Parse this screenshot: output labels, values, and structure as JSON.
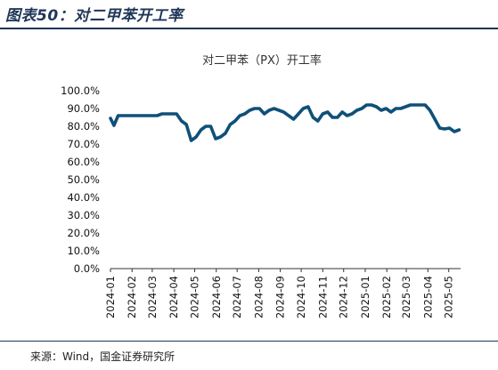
{
  "header": {
    "figure_title": "图表50：对二甲苯开工率"
  },
  "footer": {
    "source": "来源：Wind，国金证券研究所"
  },
  "colors": {
    "line": "#0f5078",
    "title_rule": "#1f3657"
  },
  "chart_data": {
    "type": "line",
    "title": "对二甲苯（PX）开工率",
    "xlabel": "",
    "ylabel": "",
    "ylim": [
      0,
      100
    ],
    "ytick_labels": [
      "0.0%",
      "10.0%",
      "20.0%",
      "30.0%",
      "40.0%",
      "50.0%",
      "60.0%",
      "70.0%",
      "80.0%",
      "90.0%",
      "100.0%"
    ],
    "xtick_labels": [
      "2024-01",
      "2024-02",
      "2024-03",
      "2024-04",
      "2024-05",
      "2024-06",
      "2024-07",
      "2024-08",
      "2024-09",
      "2024-10",
      "2024-11",
      "2024-12",
      "2025-01",
      "2025-02",
      "2025-03",
      "2025-04",
      "2025-05"
    ],
    "grid": false,
    "legend": "none",
    "series": [
      {
        "name": "",
        "x": [
          "2024-01-01",
          "2024-01-06",
          "2024-01-12",
          "2024-01-19",
          "2024-01-26",
          "2024-02-02",
          "2024-02-09",
          "2024-02-16",
          "2024-02-23",
          "2024-03-01",
          "2024-03-08",
          "2024-03-15",
          "2024-03-22",
          "2024-03-29",
          "2024-04-05",
          "2024-04-12",
          "2024-04-19",
          "2024-04-26",
          "2024-05-03",
          "2024-05-10",
          "2024-05-17",
          "2024-05-24",
          "2024-05-31",
          "2024-06-07",
          "2024-06-14",
          "2024-06-21",
          "2024-06-28",
          "2024-07-05",
          "2024-07-12",
          "2024-07-19",
          "2024-07-26",
          "2024-08-02",
          "2024-08-09",
          "2024-08-16",
          "2024-08-23",
          "2024-08-30",
          "2024-09-06",
          "2024-09-13",
          "2024-09-20",
          "2024-09-27",
          "2024-10-04",
          "2024-10-11",
          "2024-10-18",
          "2024-10-25",
          "2024-11-01",
          "2024-11-08",
          "2024-11-15",
          "2024-11-22",
          "2024-11-29",
          "2024-12-06",
          "2024-12-13",
          "2024-12-20",
          "2024-12-27",
          "2025-01-03",
          "2025-01-10",
          "2025-01-17",
          "2025-01-24",
          "2025-01-31",
          "2025-02-07",
          "2025-02-14",
          "2025-02-21",
          "2025-02-28",
          "2025-03-07",
          "2025-03-14",
          "2025-03-21",
          "2025-03-28",
          "2025-04-04",
          "2025-04-11",
          "2025-04-18",
          "2025-04-25",
          "2025-05-02",
          "2025-05-09",
          "2025-05-16"
        ],
        "values": [
          84.5,
          80.5,
          86,
          86,
          86,
          86,
          86,
          86,
          86,
          86,
          86,
          87,
          87,
          87,
          87,
          83,
          81,
          72,
          74,
          78,
          80,
          80,
          73,
          74,
          76,
          81,
          83,
          86,
          87,
          89,
          90,
          90,
          87,
          89,
          90,
          89,
          88,
          86,
          84,
          87,
          90,
          91,
          85,
          83,
          87,
          88,
          85,
          85,
          88,
          86,
          87,
          89,
          90,
          92,
          92,
          91,
          89,
          90,
          88,
          90,
          90,
          91,
          92,
          92,
          92,
          92,
          89,
          84,
          79,
          78.5,
          79,
          77,
          78
        ]
      }
    ]
  }
}
